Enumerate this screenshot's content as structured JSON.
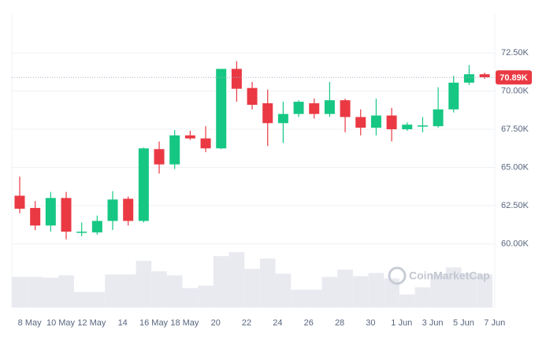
{
  "chart_data": {
    "type": "candlestick",
    "categories": [
      null,
      "8 May",
      null,
      "10 May",
      null,
      "12 May",
      null,
      "14",
      null,
      "16 May",
      null,
      "18 May",
      null,
      "20",
      null,
      "22",
      null,
      "24",
      null,
      "26",
      null,
      "28",
      null,
      "30",
      null,
      "1 Jun",
      null,
      "3 Jun",
      null,
      "5 Jun",
      null,
      "7 Jun"
    ],
    "open": [
      63150,
      62350,
      61200,
      63000,
      60750,
      60750,
      61500,
      62950,
      61500,
      66200,
      65200,
      67100,
      66900,
      66250,
      71450,
      70200,
      69200,
      67900,
      68500,
      69200,
      68500,
      69400,
      68300,
      67600,
      68400,
      67500,
      67700,
      67700,
      68800,
      70550,
      71100,
      null
    ],
    "high": [
      64400,
      62800,
      63400,
      63400,
      61400,
      61850,
      63450,
      63100,
      66300,
      66700,
      67450,
      67400,
      67700,
      71450,
      71950,
      70600,
      70100,
      69300,
      69400,
      69500,
      70600,
      69500,
      68800,
      69500,
      68900,
      67950,
      68300,
      70250,
      71000,
      71700,
      71200,
      null
    ],
    "low": [
      62000,
      60900,
      60800,
      60300,
      60500,
      60600,
      60900,
      61200,
      61400,
      64600,
      64900,
      66800,
      66000,
      66200,
      69300,
      68800,
      66400,
      66600,
      68300,
      68200,
      68300,
      67300,
      67100,
      67100,
      66700,
      67400,
      67300,
      67600,
      68600,
      70400,
      70800,
      null
    ],
    "close": [
      62300,
      61200,
      63000,
      60800,
      60800,
      61500,
      62900,
      61500,
      66250,
      65200,
      67100,
      66900,
      66250,
      71450,
      70150,
      69100,
      67900,
      68500,
      69300,
      68500,
      69400,
      68300,
      67600,
      68400,
      67500,
      67800,
      67750,
      68800,
      70550,
      71100,
      70900,
      null
    ],
    "volume": [
      38,
      38,
      37,
      40,
      19,
      19,
      41,
      41,
      58,
      45,
      40,
      24,
      27,
      64,
      69,
      48,
      61,
      42,
      22,
      22,
      38,
      47,
      39,
      43,
      36,
      16,
      25,
      41,
      50,
      42,
      41,
      null
    ],
    "up_color": "#16c784",
    "down_color": "#ea3943",
    "volume_color": "#e9eaf0",
    "ylim": [
      55850,
      75030
    ],
    "yticks": [
      {
        "value": 60000,
        "label": "60.00K"
      },
      {
        "value": 62500,
        "label": "62.50K"
      },
      {
        "value": 65000,
        "label": "65.00K"
      },
      {
        "value": 67500,
        "label": "67.50K"
      },
      {
        "value": 70000,
        "label": "70.00K"
      },
      {
        "value": 72500,
        "label": "72.50K"
      }
    ],
    "current_price": {
      "value": 70890,
      "label": "70.89K"
    },
    "watermark": "CoinMarketCap",
    "grid": true
  }
}
